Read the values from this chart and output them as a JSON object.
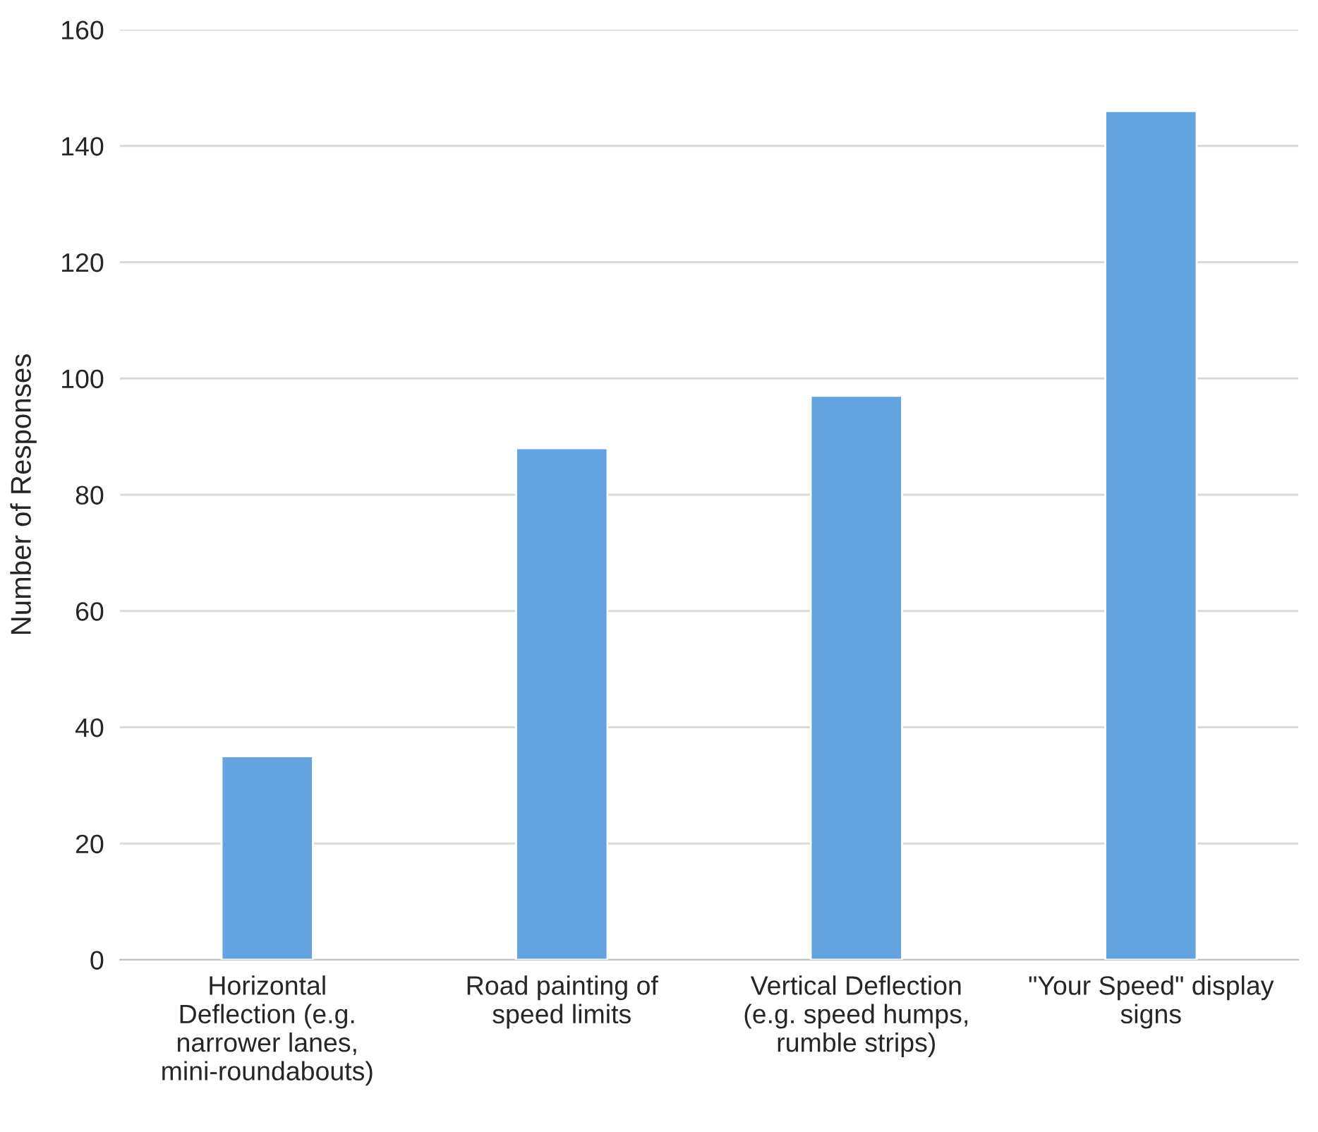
{
  "chart_data": {
    "type": "bar",
    "ylabel": "Number of Responses",
    "categories": [
      "Horizontal Deflection (e.g. narrower lanes, mini-roundabouts)",
      "Road painting of speed limits",
      "Vertical Deflection (e.g. speed humps, rumble strips)",
      "\"Your Speed\" display signs"
    ],
    "values": [
      35,
      88,
      97,
      146
    ],
    "color": "#62a3e0",
    "ylim": [
      0,
      160
    ],
    "yticks": [
      0,
      20,
      40,
      60,
      80,
      100,
      120,
      140,
      160
    ],
    "grid": "y"
  }
}
